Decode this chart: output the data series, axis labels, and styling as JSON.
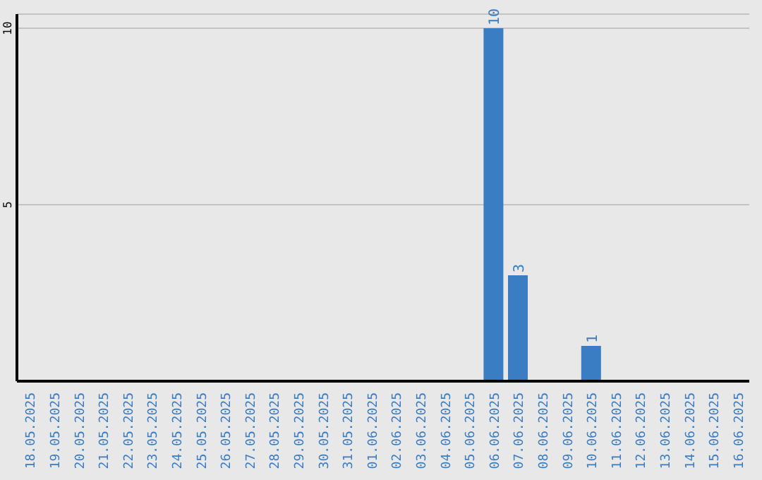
{
  "chart_data": {
    "type": "bar",
    "categories": [
      "18.05.2025",
      "19.05.2025",
      "20.05.2025",
      "21.05.2025",
      "22.05.2025",
      "23.05.2025",
      "24.05.2025",
      "25.05.2025",
      "26.05.2025",
      "27.05.2025",
      "28.05.2025",
      "29.05.2025",
      "30.05.2025",
      "31.05.2025",
      "01.06.2025",
      "02.06.2025",
      "03.06.2025",
      "04.06.2025",
      "05.06.2025",
      "06.06.2025",
      "07.06.2025",
      "08.06.2025",
      "09.06.2025",
      "10.06.2025",
      "11.06.2025",
      "12.06.2025",
      "13.06.2025",
      "14.06.2025",
      "15.06.2025",
      "16.06.2025"
    ],
    "values": [
      0,
      0,
      0,
      0,
      0,
      0,
      0,
      0,
      0,
      0,
      0,
      0,
      0,
      0,
      0,
      0,
      0,
      0,
      0,
      10,
      3,
      0,
      0,
      1,
      0,
      0,
      0,
      0,
      0,
      0
    ],
    "value_labels": [
      null,
      null,
      null,
      null,
      null,
      null,
      null,
      null,
      null,
      null,
      null,
      null,
      null,
      null,
      null,
      null,
      null,
      null,
      null,
      "10",
      "3",
      null,
      null,
      "1",
      null,
      null,
      null,
      null,
      null,
      null
    ],
    "color": "#3a7dc2",
    "ylim": [
      0,
      10.4
    ],
    "yticks": [
      5,
      10
    ],
    "grid": "y"
  }
}
